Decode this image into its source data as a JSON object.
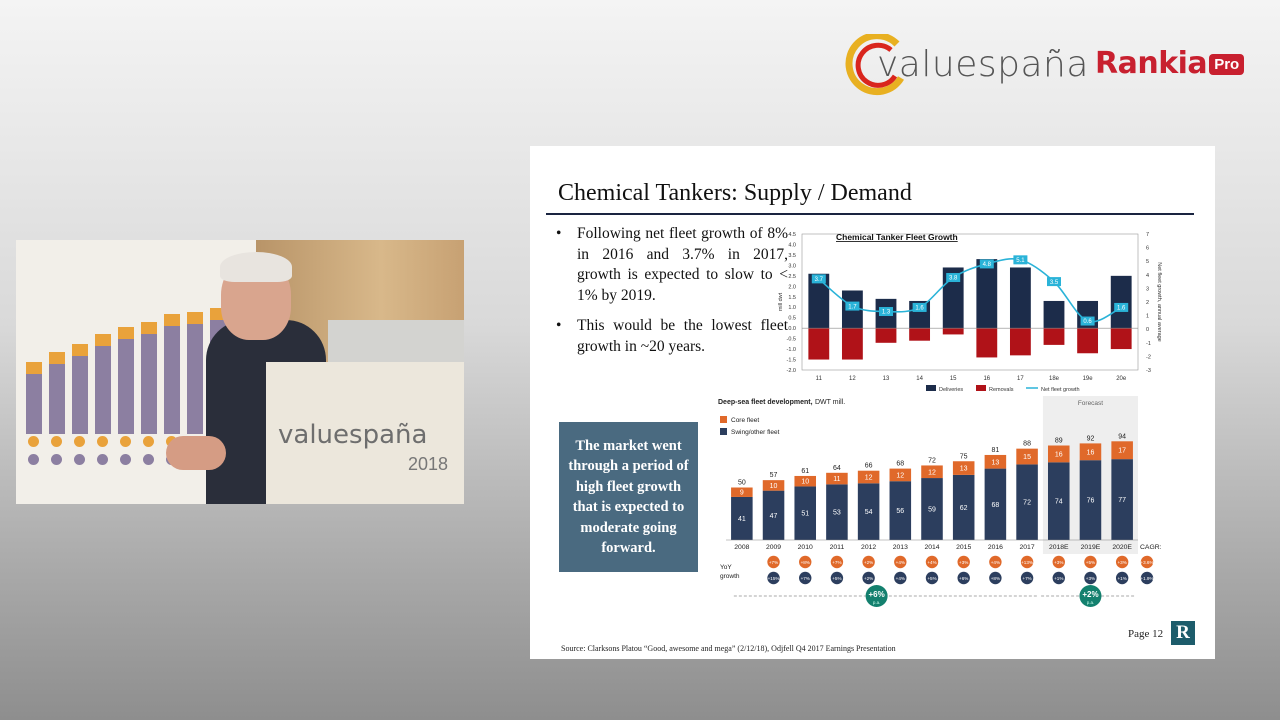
{
  "logos": {
    "valu_prefix": "valu",
    "valu_suffix": "españa",
    "rankia": "Rankia",
    "rankia_pro": "Pro"
  },
  "video": {
    "podium_logo": "valuespaña",
    "podium_year": "2018"
  },
  "slide": {
    "title": "Chemical Tankers:  Supply / Demand",
    "bullets": [
      "Following net fleet growth of 8% in 2016 and 3.7% in 2017, growth is expected to slow to < 1% by 2019.",
      "This would be the lowest fleet growth in ~20 years."
    ],
    "callout": "The market went through a period of high fleet growth that is expected to moderate going forward.",
    "source": "Source:     Clarksons Platou “Good, awesome and mega”  (2/12/18), Odjfell Q4 2017 Earnings Presentation",
    "page": "Page 12",
    "corner_logo": "R"
  },
  "chart_data": [
    {
      "type": "bar",
      "title": "Chemical Tanker Fleet Growth",
      "ylabel": "mill dwt",
      "y2label": "Net fleet growth, annual average",
      "ylim": [
        -2.0,
        4.5
      ],
      "y2lim": [
        -3,
        7
      ],
      "yticks": [
        "4.5",
        "4.0",
        "3.5",
        "3.0",
        "2.5",
        "2.0",
        "1.5",
        "1.0",
        "0.5",
        "0.0",
        "-0.5",
        "-1.0",
        "-1.5",
        "-2.0"
      ],
      "y2ticks": [
        "7",
        "6",
        "5",
        "4",
        "3",
        "2",
        "1",
        "0",
        "-1",
        "-2",
        "-3"
      ],
      "categories": [
        "11",
        "12",
        "13",
        "14",
        "15",
        "16",
        "17",
        "18e",
        "19e",
        "20e"
      ],
      "series": [
        {
          "name": "Deliveries",
          "color": "#1c2c4a",
          "values": [
            2.6,
            1.8,
            1.4,
            1.3,
            2.9,
            3.3,
            2.9,
            1.3,
            1.3,
            2.5
          ]
        },
        {
          "name": "Removals",
          "color": "#b01218",
          "values": [
            -1.5,
            -1.5,
            -0.7,
            -0.6,
            -0.3,
            -1.4,
            -1.3,
            -0.8,
            -1.2,
            -1.0
          ]
        },
        {
          "name": "Net fleet growth",
          "color": "#2ab3d8",
          "values": [
            3.7,
            1.7,
            1.3,
            1.6,
            3.8,
            4.8,
            5.1,
            3.5,
            0.6,
            1.6
          ],
          "labels": [
            "3.7",
            "1.7",
            "1.3",
            "1.6",
            "3.8",
            "4.8",
            "5.1",
            "3.5",
            "0.6",
            "1.6"
          ]
        }
      ],
      "legend": "bottom"
    },
    {
      "type": "bar",
      "title": "Deep-sea fleet development,",
      "title_unit": " DWT mill.",
      "forecast_label": "Forecast",
      "categories": [
        "2008",
        "2009",
        "2010",
        "2011",
        "2012",
        "2013",
        "2014",
        "2015",
        "2016",
        "2017",
        "2018E",
        "2019E",
        "2020E"
      ],
      "series": [
        {
          "name": "Core fleet",
          "color": "#e0692a",
          "values": [
            9,
            10,
            10,
            11,
            12,
            12,
            12,
            13,
            13,
            15,
            16,
            16,
            17
          ]
        },
        {
          "name": "Swing/other fleet",
          "color": "#2c3e5e",
          "values": [
            41,
            47,
            51,
            53,
            54,
            56,
            59,
            62,
            68,
            72,
            74,
            76,
            77
          ]
        }
      ],
      "totals": [
        50,
        57,
        61,
        64,
        66,
        68,
        72,
        75,
        81,
        88,
        89,
        92,
        94
      ],
      "yoy_label": "YoY",
      "yoy_label2": "growth",
      "cagr_label": "CAGR:",
      "yoy_core": [
        "+7%",
        "+8%",
        "+7%",
        "+2%",
        "+4%",
        "+4%",
        "+3%",
        "+4%",
        "+13%",
        "+3%",
        "+5%",
        "+3%"
      ],
      "yoy_swing": [
        "+15%",
        "+7%",
        "+5%",
        "+2%",
        "+4%",
        "+5%",
        "+6%",
        "+8%",
        "+7%",
        "+1%",
        "+3%",
        "+1%"
      ],
      "cagr_core": "+3.6%",
      "cagr_swing": "+1.9%",
      "period_badges": [
        {
          "label": "+6%",
          "sub": "p.a."
        },
        {
          "label": "+2%",
          "sub": "p.a."
        }
      ],
      "legend": "top-left"
    }
  ]
}
